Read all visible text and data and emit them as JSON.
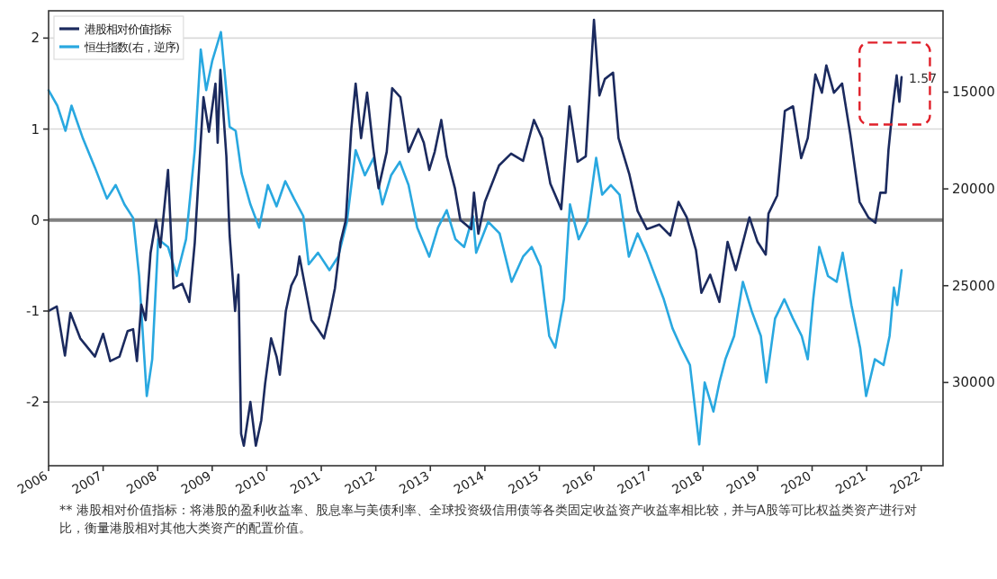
{
  "chart_data": {
    "type": "line",
    "xlim": [
      2006,
      2022.4
    ],
    "xticks": [
      2006,
      2007,
      2008,
      2009,
      2010,
      2011,
      2012,
      2013,
      2014,
      2015,
      2016,
      2017,
      2018,
      2019,
      2020,
      2021,
      2022
    ],
    "ylim": [
      -2.7,
      2.3
    ],
    "yticks": [
      -2,
      -1,
      0,
      1,
      2
    ],
    "y2lim": [
      34300,
      10800
    ],
    "y2ticks": [
      15000,
      20000,
      25000,
      30000
    ],
    "grid": "y",
    "legend": "top left",
    "line_style": "solid",
    "marker": "none",
    "ref_lines": [
      {
        "axis": "y",
        "value": 0,
        "color": "#808080"
      }
    ],
    "annotations": [
      {
        "text": "1.57",
        "x": 2021.64,
        "y": 1.57
      },
      "** 港股相对价值指标：将港股的盈利收益率、股息率与美债利率、全球投资级信用债等各类固定收益资产收益率相比较，并与A股等可比权益类资产进行对比，衡量港股相对其他大类资产的配置价值。"
    ],
    "series": [
      {
        "name": "港股相对价值指标",
        "color": "#1b2a5e",
        "x": [
          2006.0,
          2006.15,
          2006.3,
          2006.4,
          2006.58,
          2006.85,
          2007.0,
          2007.13,
          2007.3,
          2007.45,
          2007.55,
          2007.62,
          2007.7,
          2007.78,
          2007.87,
          2007.97,
          2008.05,
          2008.19,
          2008.29,
          2008.45,
          2008.58,
          2008.68,
          2008.78,
          2008.84,
          2008.94,
          2009.06,
          2009.1,
          2009.15,
          2009.26,
          2009.32,
          2009.42,
          2009.48,
          2009.53,
          2009.58,
          2009.7,
          2009.8,
          2009.9,
          2009.97,
          2010.08,
          2010.18,
          2010.24,
          2010.35,
          2010.45,
          2010.55,
          2010.6,
          2010.7,
          2010.82,
          2010.94,
          2011.05,
          2011.15,
          2011.25,
          2011.35,
          2011.45,
          2011.55,
          2011.63,
          2011.73,
          2011.84,
          2011.95,
          2012.05,
          2012.2,
          2012.3,
          2012.45,
          2012.6,
          2012.78,
          2012.88,
          2012.98,
          2013.08,
          2013.2,
          2013.3,
          2013.45,
          2013.55,
          2013.65,
          2013.75,
          2013.8,
          2013.88,
          2014.0,
          2014.26,
          2014.48,
          2014.7,
          2014.9,
          2015.05,
          2015.2,
          2015.4,
          2015.55,
          2015.7,
          2015.85,
          2016.0,
          2016.1,
          2016.2,
          2016.35,
          2016.45,
          2016.65,
          2016.8,
          2016.97,
          2017.2,
          2017.4,
          2017.55,
          2017.7,
          2017.87,
          2017.97,
          2018.13,
          2018.3,
          2018.45,
          2018.6,
          2018.85,
          2019.0,
          2019.15,
          2019.2,
          2019.36,
          2019.5,
          2019.65,
          2019.8,
          2019.92,
          2020.06,
          2020.18,
          2020.26,
          2020.4,
          2020.55,
          2020.7,
          2020.87,
          2021.03,
          2021.16,
          2021.25,
          2021.35,
          2021.4,
          2021.48,
          2021.55,
          2021.6,
          2021.64
        ],
        "values": [
          -1.0,
          -0.95,
          -1.49,
          -1.02,
          -1.3,
          -1.5,
          -1.25,
          -1.55,
          -1.5,
          -1.22,
          -1.2,
          -1.55,
          -0.93,
          -1.1,
          -0.36,
          0.0,
          -0.3,
          0.55,
          -0.75,
          -0.7,
          -0.9,
          -0.25,
          0.77,
          1.35,
          0.97,
          1.5,
          0.85,
          1.65,
          0.7,
          -0.17,
          -1.0,
          -0.6,
          -2.35,
          -2.48,
          -2.0,
          -2.48,
          -2.2,
          -1.8,
          -1.3,
          -1.5,
          -1.7,
          -1.0,
          -0.72,
          -0.6,
          -0.4,
          -0.72,
          -1.1,
          -1.2,
          -1.3,
          -1.05,
          -0.75,
          -0.25,
          0.0,
          1.0,
          1.5,
          0.9,
          1.4,
          0.8,
          0.35,
          0.75,
          1.45,
          1.35,
          0.75,
          1.0,
          0.85,
          0.55,
          0.75,
          1.1,
          0.7,
          0.35,
          0.0,
          -0.05,
          -0.1,
          0.3,
          -0.15,
          0.2,
          0.6,
          0.73,
          0.65,
          1.1,
          0.9,
          0.4,
          0.12,
          1.25,
          0.64,
          0.7,
          2.2,
          1.37,
          1.55,
          1.62,
          0.9,
          0.5,
          0.1,
          -0.1,
          -0.05,
          -0.17,
          0.2,
          0.03,
          -0.33,
          -0.8,
          -0.6,
          -0.9,
          -0.24,
          -0.55,
          0.03,
          -0.24,
          -0.38,
          0.07,
          0.27,
          1.2,
          1.25,
          0.68,
          0.9,
          1.6,
          1.4,
          1.7,
          1.4,
          1.5,
          0.94,
          0.2,
          0.03,
          -0.03,
          0.3,
          0.3,
          0.77,
          1.25,
          1.59,
          1.3,
          1.57
        ]
      },
      {
        "name": "恒生指数(右，逆序)",
        "color": "#29a8e0",
        "axis": "y2",
        "x": [
          2006.0,
          2006.16,
          2006.31,
          2006.42,
          2006.63,
          2006.85,
          2007.07,
          2007.23,
          2007.39,
          2007.55,
          2007.66,
          2007.8,
          2007.9,
          2008.01,
          2008.19,
          2008.35,
          2008.52,
          2008.68,
          2008.79,
          2008.89,
          2009.0,
          2009.16,
          2009.32,
          2009.43,
          2009.54,
          2009.7,
          2009.86,
          2010.02,
          2010.18,
          2010.34,
          2010.5,
          2010.67,
          2010.77,
          2010.94,
          2011.15,
          2011.31,
          2011.47,
          2011.63,
          2011.8,
          2011.96,
          2012.12,
          2012.28,
          2012.44,
          2012.6,
          2012.76,
          2012.98,
          2013.14,
          2013.3,
          2013.46,
          2013.62,
          2013.78,
          2013.84,
          2014.06,
          2014.27,
          2014.49,
          2014.7,
          2014.86,
          2015.02,
          2015.18,
          2015.29,
          2015.45,
          2015.56,
          2015.72,
          2015.88,
          2016.04,
          2016.15,
          2016.31,
          2016.47,
          2016.64,
          2016.8,
          2016.96,
          2017.12,
          2017.28,
          2017.44,
          2017.6,
          2017.76,
          2017.93,
          2018.03,
          2018.19,
          2018.3,
          2018.41,
          2018.57,
          2018.73,
          2018.89,
          2019.06,
          2019.16,
          2019.32,
          2019.49,
          2019.65,
          2019.81,
          2019.92,
          2020.02,
          2020.13,
          2020.29,
          2020.45,
          2020.56,
          2020.72,
          2020.88,
          2020.99,
          2021.15,
          2021.31,
          2021.42,
          2021.5,
          2021.56,
          2021.64
        ],
        "values": [
          14900,
          15700,
          17000,
          15700,
          17400,
          18900,
          20500,
          19800,
          20800,
          21500,
          24500,
          30700,
          28800,
          22600,
          23000,
          24500,
          22600,
          18000,
          12800,
          14900,
          13400,
          11900,
          16800,
          17000,
          19200,
          20800,
          22000,
          19800,
          20900,
          19600,
          20500,
          21400,
          23900,
          23300,
          24200,
          23500,
          21700,
          18000,
          19300,
          18400,
          20800,
          19300,
          18600,
          19800,
          22000,
          23500,
          22000,
          21100,
          22600,
          23000,
          21400,
          23300,
          21700,
          22300,
          24800,
          23500,
          23000,
          24000,
          27600,
          28200,
          25700,
          20800,
          22600,
          21700,
          18400,
          20300,
          19800,
          20300,
          23500,
          22300,
          23300,
          24500,
          25700,
          27200,
          28200,
          29100,
          33200,
          30000,
          31500,
          30000,
          28800,
          27600,
          24800,
          26300,
          27600,
          30000,
          26700,
          25700,
          26700,
          27600,
          28800,
          25700,
          23000,
          24500,
          24800,
          23300,
          26000,
          28200,
          30700,
          28800,
          29100,
          27600,
          25100,
          26000,
          24200
        ]
      }
    ]
  }
}
